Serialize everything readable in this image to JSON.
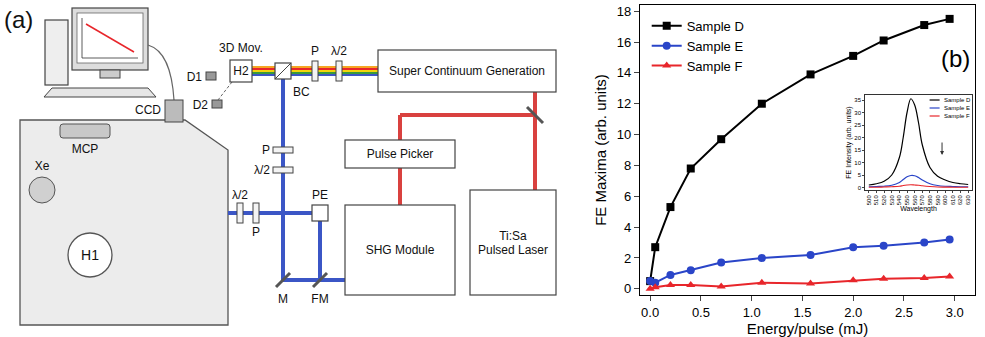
{
  "diagram": {
    "panel_label": "(a)",
    "boxes": {
      "supercontinuum": [
        "Super Continuum Generation"
      ],
      "pulse_picker": [
        "Pulse Picker"
      ],
      "shg": [
        "SHG Module"
      ],
      "laser": [
        "Ti:Sa",
        "Pulsed Laser"
      ]
    },
    "labels": {
      "ccd": "CCD",
      "d1": "D1",
      "d2": "D2",
      "mov": "3D Mov.",
      "h2": "H2",
      "bc": "BC",
      "p_sc": "P",
      "hwp_sc": "λ/2",
      "p_up": "P",
      "hwp_up": "λ/2",
      "p_in": "P",
      "hwp_in": "λ/2",
      "mcp": "MCP",
      "xe": "Xe",
      "h1": "H1",
      "pe": "PE",
      "m": "M",
      "fm": "FM"
    }
  },
  "chart_data": [
    {
      "type": "line",
      "annotations": [
        "(b)"
      ],
      "x_label": "Energy/pulse (mJ)",
      "y_label": "FE Maxima (arb. units)",
      "x": [
        0.0,
        0.05,
        0.2,
        0.4,
        0.7,
        1.1,
        1.58,
        2.0,
        2.3,
        2.7,
        2.95
      ],
      "series": [
        {
          "name": "Sample D",
          "color": "#000000",
          "marker": "square",
          "line_style": "solid",
          "values": [
            0.5,
            2.7,
            5.3,
            7.8,
            9.7,
            12.0,
            13.9,
            15.1,
            16.1,
            17.1,
            17.5
          ]
        },
        {
          "name": "Sample E",
          "color": "#2a45c8",
          "marker": "circle",
          "line_style": "solid",
          "values": [
            0.5,
            0.4,
            0.9,
            1.2,
            1.7,
            2.0,
            2.2,
            2.7,
            2.8,
            3.0,
            3.2
          ]
        },
        {
          "name": "Sample F",
          "color": "#e8262b",
          "marker": "triangle",
          "line_style": "solid",
          "values": [
            0.0,
            0.1,
            0.25,
            0.25,
            0.15,
            0.4,
            0.35,
            0.55,
            0.65,
            0.7,
            0.8
          ]
        }
      ],
      "xlim": [
        -0.1,
        3.2
      ],
      "xticks": [
        {
          "value": 0,
          "label": "0.0"
        },
        {
          "value": 0.5,
          "label": "0.5"
        },
        {
          "value": 1,
          "label": "1.0"
        },
        {
          "value": 1.5,
          "label": "1.5"
        },
        {
          "value": 2,
          "label": "2.0"
        },
        {
          "value": 2.5,
          "label": "2.5"
        },
        {
          "value": 3,
          "label": "3.0"
        }
      ],
      "ylim": [
        -0.4,
        18.4
      ],
      "yticks": [
        0,
        2,
        4,
        6,
        8,
        10,
        12,
        14,
        16,
        18
      ],
      "legend": "upper left",
      "grid": false
    },
    {
      "type": "line",
      "x_label": "Wavelength",
      "y_label": "FE Intensity (arb. units)",
      "x": [
        500,
        510,
        520,
        530,
        540,
        545,
        550,
        555,
        560,
        565,
        570,
        580,
        590,
        600,
        610,
        620,
        630
      ],
      "series": [
        {
          "name": "Sample D",
          "color": "#000000",
          "line_style": "solid",
          "values": [
            1.0,
            1.5,
            2.5,
            5,
            12,
            20,
            30,
            35.5,
            33,
            26,
            17,
            8,
            4.5,
            3,
            2,
            1.5,
            1.2
          ]
        },
        {
          "name": "Sample E",
          "color": "#2a45c8",
          "line_style": "solid",
          "values": [
            0.3,
            0.4,
            0.5,
            0.9,
            2,
            3.2,
            4.3,
            4.8,
            4.7,
            4.0,
            3,
            1.5,
            0.8,
            0.5,
            0.4,
            0.3,
            0.3
          ]
        },
        {
          "name": "Sample F",
          "color": "#e8262b",
          "line_style": "solid",
          "values": [
            0.1,
            0.1,
            0.2,
            0.3,
            0.5,
            0.8,
            1.0,
            1.1,
            1.0,
            0.9,
            0.7,
            0.4,
            0.2,
            0.15,
            0.1,
            0.1,
            0.1
          ]
        }
      ],
      "xlim": [
        495,
        635
      ],
      "xticks": [
        500,
        510,
        520,
        530,
        540,
        550,
        560,
        570,
        580,
        590,
        600,
        610,
        620,
        630
      ],
      "ylim": [
        -1,
        37
      ],
      "yticks": [
        0,
        5,
        10,
        15,
        20,
        25,
        30,
        35
      ],
      "legend": "upper right",
      "grid": false
    }
  ]
}
